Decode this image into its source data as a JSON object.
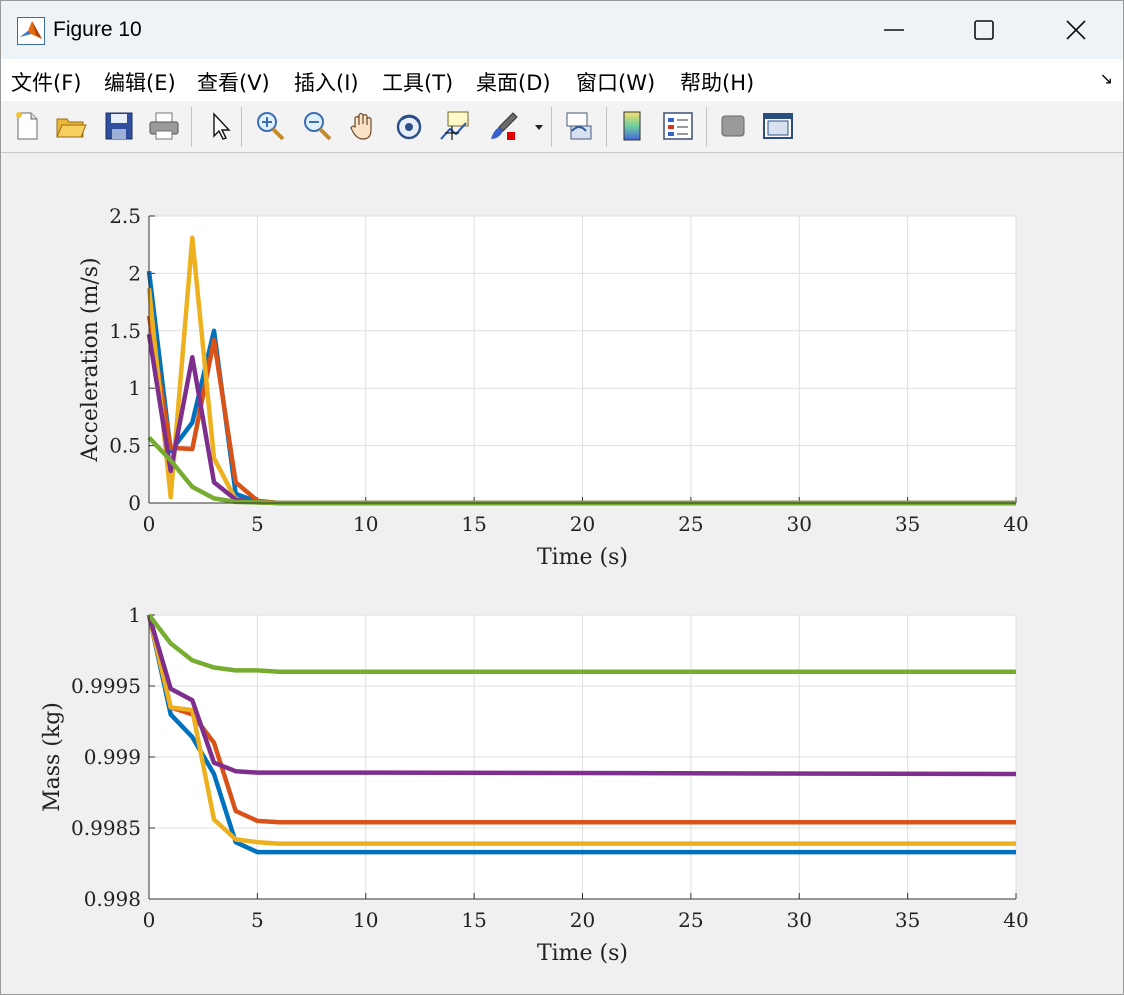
{
  "window": {
    "title": "Figure 10"
  },
  "menu": [
    {
      "label": "文件(F)"
    },
    {
      "label": "编辑(E)"
    },
    {
      "label": "查看(V)"
    },
    {
      "label": "插入(I)"
    },
    {
      "label": "工具(T)"
    },
    {
      "label": "桌面(D)"
    },
    {
      "label": "窗口(W)"
    },
    {
      "label": "帮助(H)"
    }
  ],
  "toolbar": {
    "icons": [
      "new-figure-icon",
      "open-file-icon",
      "save-icon",
      "print-icon",
      "pointer-icon",
      "zoom-in-icon",
      "zoom-out-icon",
      "pan-hand-icon",
      "rotate-3d-icon",
      "data-cursor-icon",
      "brush-icon",
      "brush-dropdown-icon",
      "link-plot-icon",
      "colorbar-icon",
      "legend-icon",
      "hide-plot-tools-icon",
      "show-plot-tools-icon"
    ]
  },
  "colors": {
    "series1": "#0072BD",
    "series2": "#D95319",
    "series3": "#EDB120",
    "series4": "#7E2F8E",
    "series5": "#77AC30"
  },
  "chart_data": [
    {
      "type": "line",
      "xlabel": "Time (s)",
      "ylabel": "Acceleration (m/s)",
      "xlim": [
        0,
        40
      ],
      "ylim": [
        0,
        2.5
      ],
      "xticks": [
        "0",
        "5",
        "10",
        "15",
        "20",
        "25",
        "30",
        "35",
        "40"
      ],
      "yticks": [
        "0",
        "0.5",
        "1",
        "1.5",
        "2",
        "2.5"
      ],
      "grid": true,
      "x": [
        0,
        1,
        2,
        3,
        4,
        5,
        6,
        7,
        8,
        9,
        10,
        40
      ],
      "series": [
        {
          "color": "#0072BD",
          "values": [
            2.02,
            0.45,
            0.7,
            1.5,
            0.08,
            0.01,
            0,
            0,
            0,
            0,
            0,
            0
          ]
        },
        {
          "color": "#D95319",
          "values": [
            1.63,
            0.48,
            0.47,
            1.42,
            0.18,
            0.02,
            0,
            0,
            0,
            0,
            0,
            0
          ]
        },
        {
          "color": "#EDB120",
          "values": [
            1.87,
            0.05,
            2.31,
            0.39,
            0.03,
            0.005,
            0,
            0,
            0,
            0,
            0,
            0
          ]
        },
        {
          "color": "#7E2F8E",
          "values": [
            1.47,
            0.28,
            1.27,
            0.18,
            0.03,
            0.005,
            0,
            0,
            0,
            0,
            0,
            0
          ]
        },
        {
          "color": "#77AC30",
          "values": [
            0.57,
            0.37,
            0.14,
            0.04,
            0.01,
            0.005,
            0,
            0,
            0,
            0,
            0,
            0
          ]
        }
      ]
    },
    {
      "type": "line",
      "xlabel": "Time (s)",
      "ylabel": "Mass (kg)",
      "xlim": [
        0,
        40
      ],
      "ylim": [
        0.998,
        1.0
      ],
      "xticks": [
        "0",
        "5",
        "10",
        "15",
        "20",
        "25",
        "30",
        "35",
        "40"
      ],
      "yticks": [
        "0.998",
        "0.9985",
        "0.999",
        "0.9995",
        "1"
      ],
      "grid": true,
      "x": [
        0,
        1,
        2,
        3,
        4,
        5,
        6,
        7,
        8,
        9,
        10,
        40
      ],
      "series": [
        {
          "color": "#0072BD",
          "values": [
            1.0,
            0.9993,
            0.99914,
            0.99888,
            0.9984,
            0.99833,
            0.99833,
            0.99833,
            0.99833,
            0.99833,
            0.99833,
            0.99833
          ]
        },
        {
          "color": "#D95319",
          "values": [
            1.0,
            0.99935,
            0.9993,
            0.9991,
            0.99862,
            0.99855,
            0.99854,
            0.99854,
            0.99854,
            0.99854,
            0.99854,
            0.99854
          ]
        },
        {
          "color": "#EDB120",
          "values": [
            1.0,
            0.99935,
            0.99933,
            0.99856,
            0.99842,
            0.9984,
            0.99839,
            0.99839,
            0.99839,
            0.99839,
            0.99839,
            0.99839
          ]
        },
        {
          "color": "#7E2F8E",
          "values": [
            1.0,
            0.99948,
            0.9994,
            0.99896,
            0.9989,
            0.99889,
            0.99889,
            0.99889,
            0.99889,
            0.99889,
            0.99889,
            0.99888
          ]
        },
        {
          "color": "#77AC30",
          "values": [
            1.0,
            0.9998,
            0.99968,
            0.99963,
            0.99961,
            0.99961,
            0.9996,
            0.9996,
            0.9996,
            0.9996,
            0.9996,
            0.9996
          ]
        }
      ]
    }
  ]
}
